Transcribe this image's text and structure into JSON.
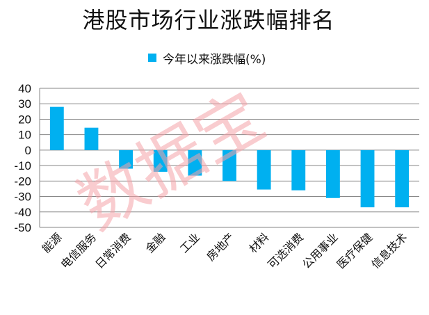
{
  "chart_data": {
    "type": "bar",
    "title": "港股市场行业涨跌幅排名",
    "categories": [
      "能源",
      "电信服务",
      "日常消费",
      "金融",
      "工业",
      "房地产",
      "材料",
      "可选消费",
      "公用事业",
      "医疗保健",
      "信息技术"
    ],
    "series": [
      {
        "name": "今年以来涨跌幅(%)",
        "values": [
          28,
          14.5,
          -12,
          -14,
          -16.5,
          -20,
          -25.5,
          -26,
          -31,
          -37,
          -37
        ]
      }
    ],
    "ylim": [
      -50,
      40
    ],
    "yticks": [
      "40",
      "30",
      "20",
      "10",
      "0",
      "-10",
      "-20",
      "-30",
      "-40",
      "-50"
    ],
    "grid": true,
    "legend_position": "top",
    "bar_color": "#00b0f0"
  },
  "watermark": "数据宝"
}
